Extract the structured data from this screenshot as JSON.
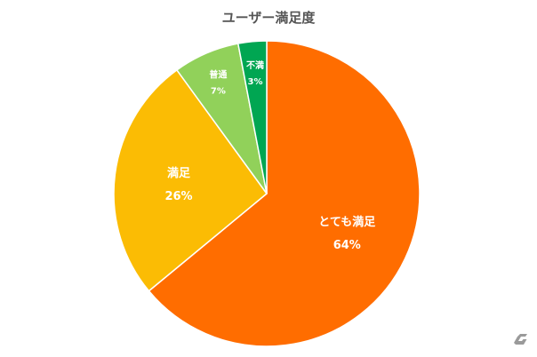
{
  "chart_data": {
    "type": "pie",
    "title": "ユーザー満足度",
    "slices": [
      {
        "label": "とても満足",
        "value": 64,
        "value_label": "64%",
        "color": "#ff6d00"
      },
      {
        "label": "満足",
        "value": 26,
        "value_label": "26%",
        "color": "#fbbc04"
      },
      {
        "label": "普通",
        "value": 7,
        "value_label": "7%",
        "color": "#91d15a"
      },
      {
        "label": "不満",
        "value": 3,
        "value_label": "3%",
        "color": "#00a652"
      }
    ],
    "start": "12 o'clock",
    "direction": "clockwise",
    "legend": "none"
  },
  "watermark_icon": "gamer-logo-icon"
}
